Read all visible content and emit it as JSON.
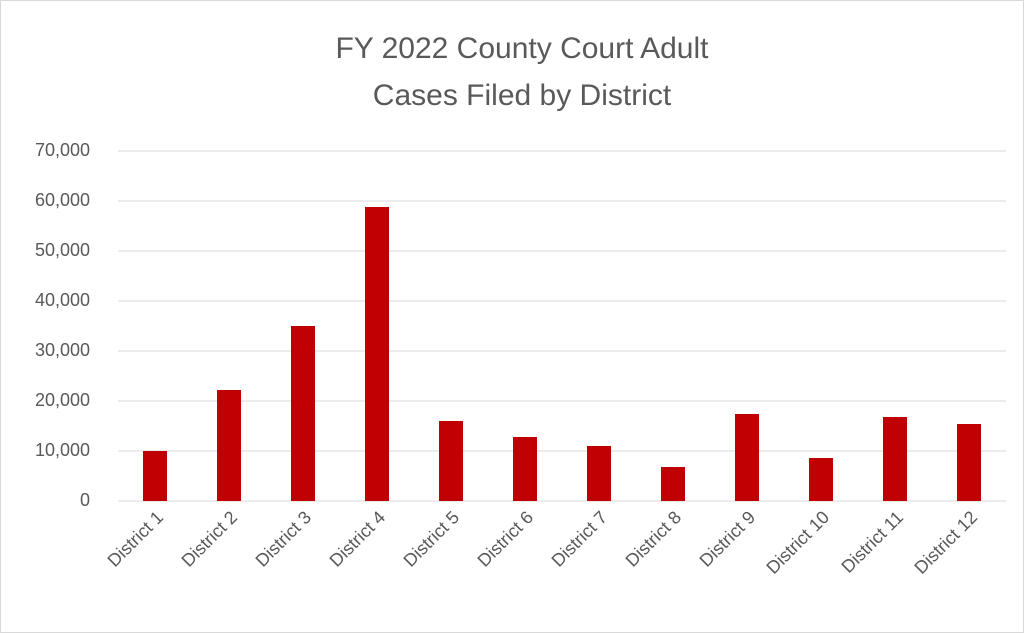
{
  "chart_data": {
    "type": "bar",
    "title": [
      "FY 2022 County Court Adult",
      "Cases Filed by District"
    ],
    "categories": [
      "District 1",
      "District 2",
      "District 3",
      "District 4",
      "District 5",
      "District 6",
      "District 7",
      "District 8",
      "District 9",
      "District 10",
      "District 11",
      "District 12"
    ],
    "values": [
      10000,
      22200,
      35000,
      58800,
      16000,
      12800,
      11000,
      6800,
      17400,
      8600,
      16800,
      15400
    ],
    "color": "#c00000",
    "ylim": [
      0,
      70000
    ],
    "yticks": [
      0,
      {
        "value": 10000,
        "label": "10,000"
      },
      {
        "value": 20000,
        "label": "20,000"
      },
      {
        "value": 30000,
        "label": "30,000"
      },
      {
        "value": 40000,
        "label": "40,000"
      },
      {
        "value": 50000,
        "label": "50,000"
      },
      {
        "value": 60000,
        "label": "60,000"
      },
      {
        "value": 70000,
        "label": "70,000"
      }
    ],
    "grid": true
  }
}
